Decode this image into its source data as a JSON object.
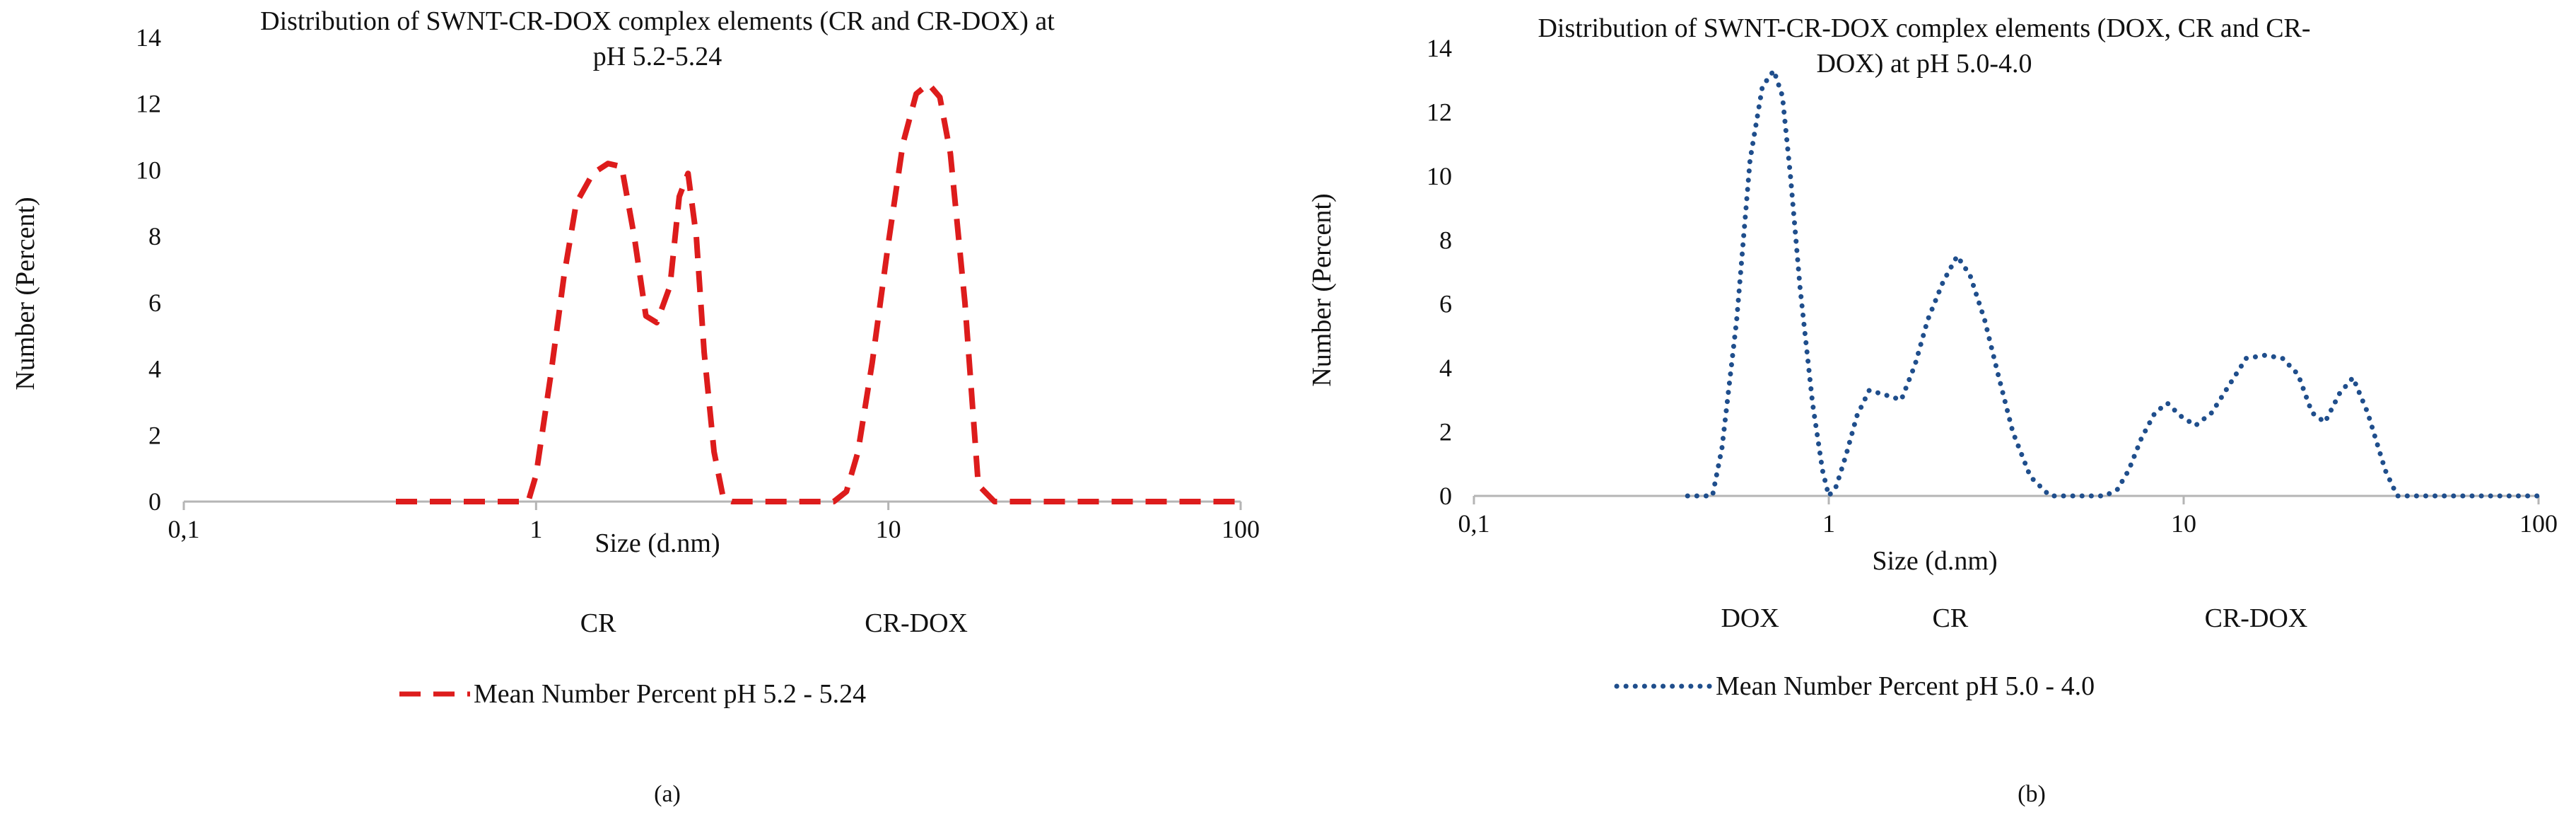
{
  "chart_data": [
    {
      "type": "line",
      "panel_label": "(a)",
      "title_lines": [
        "Distribution of  SWNT-CR-DOX complex elements (CR and CR-DOX) at",
        "pH 5.2-5.24"
      ],
      "xlabel": "Size (d.nm)",
      "ylabel": "Number (Percent)",
      "xscale": "log",
      "xlim": [
        0.1,
        100
      ],
      "ylim": [
        0,
        14
      ],
      "x_ticks": [
        0.1,
        1,
        10,
        100
      ],
      "x_tick_labels": [
        "0,1",
        "1",
        "10",
        "100"
      ],
      "y_ticks": [
        0,
        2,
        4,
        6,
        8,
        10,
        12,
        14
      ],
      "y_tick_labels": [
        "0",
        "2",
        "4",
        "6",
        "8",
        "10",
        "12",
        "14"
      ],
      "region_labels": [
        {
          "text": "CR",
          "at": 1.5
        },
        {
          "text": "CR-DOX",
          "at": 12
        }
      ],
      "legend_position": "bottom",
      "series": [
        {
          "name": "Mean Number Percent pH 5.2 - 5.24",
          "color": "#dd1c1c",
          "style": "dashed",
          "x": [
            0.4,
            0.5,
            0.6,
            0.7,
            0.8,
            0.9,
            0.95,
            1.0,
            1.1,
            1.2,
            1.3,
            1.45,
            1.6,
            1.75,
            1.9,
            2.05,
            2.2,
            2.4,
            2.55,
            2.7,
            2.85,
            3.0,
            3.2,
            3.4,
            3.6,
            4.0,
            5.0,
            6.0,
            7.0,
            7.6,
            8.2,
            9.0,
            10.0,
            11.0,
            12.0,
            13.0,
            14.0,
            15.0,
            16.5,
            18.0,
            20.0,
            30.0,
            50.0,
            100.0
          ],
          "y": [
            0,
            0,
            0,
            0,
            0,
            0,
            0,
            0.8,
            3.8,
            6.8,
            9.0,
            9.9,
            10.2,
            10.1,
            8.0,
            5.6,
            5.4,
            6.5,
            9.2,
            9.9,
            8.0,
            4.5,
            1.5,
            0.1,
            0,
            0,
            0,
            0,
            0,
            0.3,
            1.5,
            4.2,
            7.8,
            10.8,
            12.3,
            12.6,
            12.2,
            10.5,
            6.0,
            0.5,
            0,
            0,
            0,
            0
          ]
        }
      ]
    },
    {
      "type": "line",
      "panel_label": "(b)",
      "title_lines": [
        "Distribution of  SWNT-CR-DOX complex elements (DOX, CR and CR-",
        "DOX) at  pH 5.0-4.0"
      ],
      "xlabel": "Size (d.nm)",
      "ylabel": "Number (Percent)",
      "xscale": "log",
      "xlim": [
        0.1,
        100
      ],
      "ylim": [
        0,
        14
      ],
      "x_ticks": [
        0.1,
        1,
        10,
        100
      ],
      "x_tick_labels": [
        "0,1",
        "1",
        "10",
        "100"
      ],
      "y_ticks": [
        0,
        2,
        4,
        6,
        8,
        10,
        12,
        14
      ],
      "y_tick_labels": [
        "0",
        "2",
        "4",
        "6",
        "8",
        "10",
        "12",
        "14"
      ],
      "region_labels": [
        {
          "text": "DOX",
          "at": 0.6
        },
        {
          "text": "CR",
          "at": 2.2
        },
        {
          "text": "CR-DOX",
          "at": 16
        }
      ],
      "legend_position": "bottom",
      "series": [
        {
          "name": "Mean Number Percent pH 5.0 - 4.0",
          "color": "#1f4e8c",
          "style": "dotted",
          "x": [
            0.4,
            0.47,
            0.5,
            0.55,
            0.6,
            0.65,
            0.7,
            0.74,
            0.78,
            0.83,
            0.9,
            0.96,
            1.0,
            1.05,
            1.12,
            1.2,
            1.3,
            1.4,
            1.5,
            1.6,
            1.75,
            1.9,
            2.1,
            2.3,
            2.5,
            2.75,
            3.0,
            3.3,
            3.7,
            4.2,
            5.0,
            6.0,
            6.5,
            7.0,
            7.6,
            8.3,
            9.0,
            9.8,
            10.8,
            12.0,
            13.5,
            15.0,
            17.0,
            19.0,
            21.0,
            23.0,
            25.0,
            27.5,
            30.0,
            33.0,
            37.0,
            40.0,
            50.0,
            70.0,
            100.0
          ],
          "y": [
            0,
            0,
            1.5,
            5.5,
            10.5,
            12.8,
            13.3,
            12.5,
            10.0,
            6.5,
            2.9,
            0.8,
            0,
            0.3,
            1.3,
            2.5,
            3.3,
            3.2,
            3.1,
            3.0,
            4.1,
            5.5,
            6.7,
            7.5,
            6.9,
            5.5,
            3.8,
            2.0,
            0.6,
            0,
            0,
            0,
            0.2,
            0.8,
            1.8,
            2.6,
            2.9,
            2.5,
            2.2,
            2.6,
            3.5,
            4.3,
            4.4,
            4.3,
            3.8,
            2.6,
            2.3,
            3.2,
            3.7,
            2.6,
            0.8,
            0,
            0,
            0,
            0
          ]
        }
      ]
    }
  ]
}
